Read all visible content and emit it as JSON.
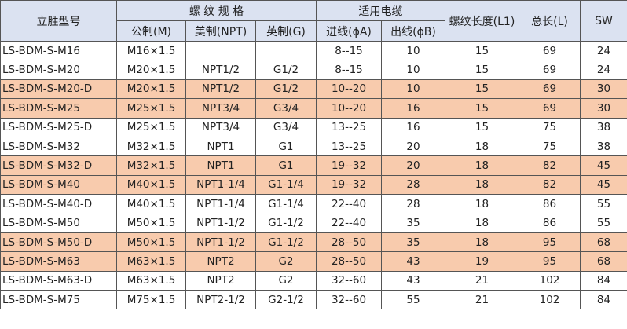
{
  "header": {
    "model": "立胜型号",
    "thread_spec": "螺 纹 规 格",
    "metric": "公制(M)",
    "npt": "美制(NPT)",
    "g": "英制(G)",
    "cable": "适用电缆",
    "inlet": "进线(ϕA)",
    "outlet": "出线(ϕB)",
    "thread_len": "螺纹长度(L1)",
    "total_len": "总长(L)",
    "sw": "SW"
  },
  "highlight_color": "#f8cbad",
  "header_color": "#dbe2f1",
  "rows": [
    {
      "model": "LS-BDM-S-M16",
      "m": "M16×1.5",
      "npt": "",
      "g": "",
      "a": "8--15",
      "b": "10",
      "l1": "15",
      "l": "69",
      "sw": "24",
      "hl": false
    },
    {
      "model": "LS-BDM-S-M20",
      "m": "M20×1.5",
      "npt": "NPT1/2",
      "g": "G1/2",
      "a": "8--15",
      "b": "10",
      "l1": "15",
      "l": "69",
      "sw": "24",
      "hl": false
    },
    {
      "model": "LS-BDM-S-M20-D",
      "m": "M20×1.5",
      "npt": "NPT1/2",
      "g": "G1/2",
      "a": "10--20",
      "b": "10",
      "l1": "15",
      "l": "69",
      "sw": "30",
      "hl": true
    },
    {
      "model": "LS-BDM-S-M25",
      "m": "M25×1.5",
      "npt": "NPT3/4",
      "g": "G3/4",
      "a": "10--20",
      "b": "16",
      "l1": "15",
      "l": "69",
      "sw": "30",
      "hl": true
    },
    {
      "model": "LS-BDM-S-M25-D",
      "m": "M25×1.5",
      "npt": "NPT3/4",
      "g": "G3/4",
      "a": "13--25",
      "b": "16",
      "l1": "15",
      "l": "75",
      "sw": "38",
      "hl": false
    },
    {
      "model": "LS-BDM-S-M32",
      "m": "M32×1.5",
      "npt": "NPT1",
      "g": "G1",
      "a": "13--25",
      "b": "20",
      "l1": "18",
      "l": "75",
      "sw": "38",
      "hl": false
    },
    {
      "model": "LS-BDM-S-M32-D",
      "m": "M32×1.5",
      "npt": "NPT1",
      "g": "G1",
      "a": "19--32",
      "b": "20",
      "l1": "18",
      "l": "82",
      "sw": "45",
      "hl": true
    },
    {
      "model": "LS-BDM-S-M40",
      "m": "M40×1.5",
      "npt": "NPT1-1/4",
      "g": "G1-1/4",
      "a": "19--32",
      "b": "28",
      "l1": "18",
      "l": "82",
      "sw": "45",
      "hl": true
    },
    {
      "model": "LS-BDM-S-M40-D",
      "m": "M40×1.5",
      "npt": "NPT1-1/4",
      "g": "G1-1/4",
      "a": "22--40",
      "b": "28",
      "l1": "18",
      "l": "86",
      "sw": "55",
      "hl": false
    },
    {
      "model": "LS-BDM-S-M50",
      "m": "M50×1.5",
      "npt": "NPT1-1/2",
      "g": "G1-1/2",
      "a": "22--40",
      "b": "35",
      "l1": "18",
      "l": "86",
      "sw": "55",
      "hl": false
    },
    {
      "model": "LS-BDM-S-M50-D",
      "m": "M50×1.5",
      "npt": "NPT1-1/2",
      "g": "G1-1/2",
      "a": "28--50",
      "b": "35",
      "l1": "18",
      "l": "95",
      "sw": "68",
      "hl": true
    },
    {
      "model": "LS-BDM-S-M63",
      "m": "M63×1.5",
      "npt": "NPT2",
      "g": "G2",
      "a": "28--50",
      "b": "43",
      "l1": "19",
      "l": "95",
      "sw": "68",
      "hl": true
    },
    {
      "model": "LS-BDM-S-M63-D",
      "m": "M63×1.5",
      "npt": "NPT2",
      "g": "G2",
      "a": "32--60",
      "b": "43",
      "l1": "21",
      "l": "102",
      "sw": "84",
      "hl": false
    },
    {
      "model": "LS-BDM-S-M75",
      "m": "M75×1.5",
      "npt": "NPT2-1/2",
      "g": "G2-1/2",
      "a": "32--60",
      "b": "55",
      "l1": "21",
      "l": "102",
      "sw": "84",
      "hl": false
    }
  ]
}
